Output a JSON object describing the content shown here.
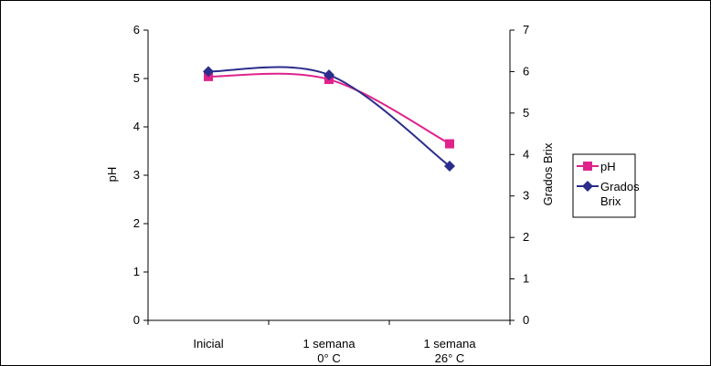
{
  "chart_data": {
    "type": "line",
    "categories": [
      "Inicial",
      "1 semana\n0° C",
      "1 semana\n26° C"
    ],
    "y_left": {
      "label": "pH",
      "ylim": [
        0,
        6
      ],
      "ticks": [
        "0",
        "1",
        "2",
        "3",
        "4",
        "5",
        "6"
      ]
    },
    "y_right": {
      "label": "Grados Brix",
      "ylim": [
        0,
        7
      ],
      "ticks": [
        "0",
        "1",
        "2",
        "3",
        "4",
        "5",
        "6",
        "7"
      ]
    },
    "series": [
      {
        "name": "pH",
        "axis": "left",
        "color": "#e0228c",
        "marker": "square",
        "values": [
          5.04,
          4.98,
          3.65
        ]
      },
      {
        "name": "Grados Brix",
        "axis": "right",
        "color": "#2b2d8c",
        "marker": "diamond",
        "values": [
          6.0,
          5.92,
          3.72
        ]
      }
    ],
    "legend": {
      "position": "right",
      "entries": [
        "pH",
        "Grados\nBrix"
      ]
    },
    "grid": false
  }
}
